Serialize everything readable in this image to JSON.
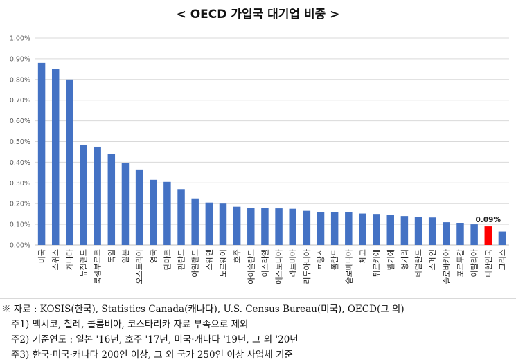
{
  "title": "< OECD 가입국 대기업 비중 >",
  "chart_data": {
    "type": "bar",
    "categories": [
      "미국",
      "스위스",
      "캐나다",
      "뉴질랜드",
      "룩셈부르크",
      "독일",
      "일본",
      "오스트리아",
      "영국",
      "덴마크",
      "핀란드",
      "아일랜드",
      "스웨덴",
      "노르웨이",
      "호주",
      "아이슬란드",
      "이스라엘",
      "에스토니아",
      "라트비아",
      "리투아니아",
      "프랑스",
      "폴란드",
      "슬로베니아",
      "체코",
      "튀르키예",
      "벨기에",
      "헝가리",
      "네덜란드",
      "스페인",
      "슬로바키아",
      "포르투갈",
      "이탈리아",
      "대한민국",
      "그리스"
    ],
    "values": [
      0.88,
      0.85,
      0.8,
      0.485,
      0.475,
      0.44,
      0.395,
      0.365,
      0.315,
      0.305,
      0.27,
      0.225,
      0.205,
      0.2,
      0.185,
      0.18,
      0.178,
      0.177,
      0.175,
      0.165,
      0.16,
      0.16,
      0.158,
      0.152,
      0.15,
      0.145,
      0.14,
      0.137,
      0.133,
      0.11,
      0.107,
      0.1,
      0.09,
      0.065
    ],
    "ylim": [
      0,
      1.0
    ],
    "yticks": [
      "0.00%",
      "0.10%",
      "0.20%",
      "0.30%",
      "0.40%",
      "0.50%",
      "0.60%",
      "0.70%",
      "0.80%",
      "0.90%",
      "1.00%"
    ],
    "highlight": {
      "category": "대한민국",
      "label": "0.09%"
    },
    "grid": true,
    "bar_color": "#4472c4",
    "highlight_color": "#ff0000"
  },
  "notes": {
    "source_prefix": "※ 자료 :  ",
    "source_kosis": "KOSIS",
    "source_kosis_suffix": "(한국), Statistics Canada(캐나다), ",
    "source_census": "U.S. Census Bureau",
    "source_census_suffix": "(미국), ",
    "source_oecd": "OECD",
    "source_oecd_suffix": "(그 외)",
    "note1": "주1) 멕시코, 칠레, 콜롬비아, 코스타리카 자료 부족으로 제외",
    "note2": "주2) 기준연도 : 일본 '16년, 호주 '17년, 미국·캐나다 '19년, 그 외 '20년",
    "note3": "주3) 한국·미국·캐나다 200인 이상, 그 외 국가 250인 이상 사업체 기준"
  }
}
